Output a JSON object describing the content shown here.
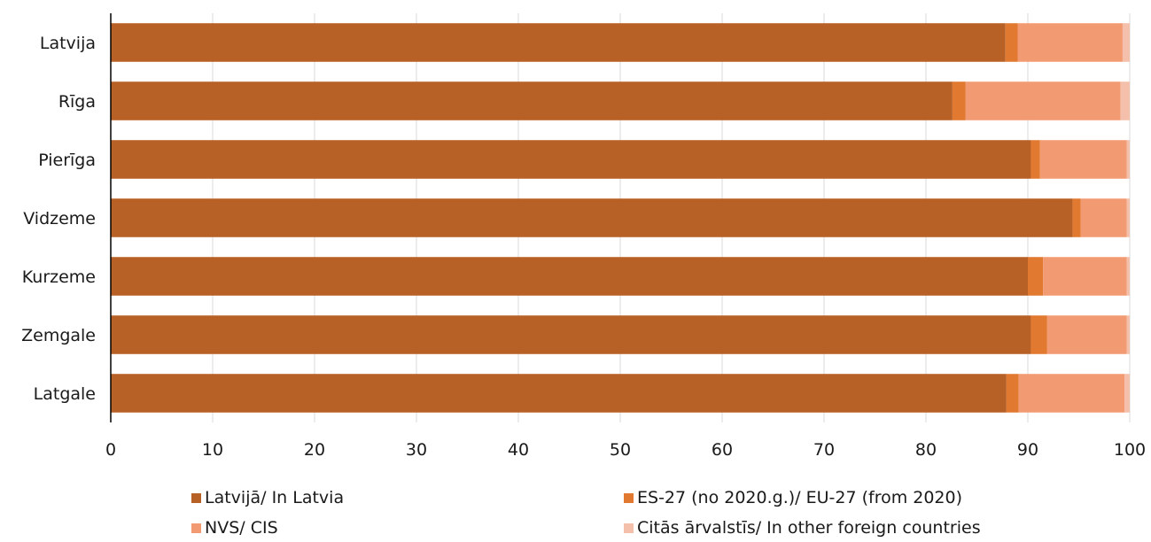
{
  "chart_data": {
    "type": "bar",
    "orientation": "horizontal",
    "stacked": true,
    "categories": [
      "Latvija",
      "Rīga",
      "Pierīga",
      "Vidzeme",
      "Kurzeme",
      "Zemgale",
      "Latgale"
    ],
    "series": [
      {
        "name": "Latvijā/ In Latvia",
        "color": "#b86126",
        "values": [
          87.8,
          82.6,
          90.3,
          94.4,
          90.0,
          90.3,
          87.9
        ]
      },
      {
        "name": "ES-27 (no 2020.g.)/ EU-27 (from 2020)",
        "color": "#e17930",
        "values": [
          1.2,
          1.3,
          0.9,
          0.8,
          1.5,
          1.6,
          1.2
        ]
      },
      {
        "name": "NVS/ CIS",
        "color": "#f29b73",
        "values": [
          10.3,
          15.2,
          8.5,
          4.5,
          8.2,
          7.8,
          10.4
        ]
      },
      {
        "name": "Citās ārvalstīs/ In other foreign countries",
        "color": "#f4c0ac",
        "values": [
          0.7,
          0.9,
          0.3,
          0.3,
          0.3,
          0.3,
          0.5
        ]
      }
    ],
    "xlim": [
      0,
      100
    ],
    "xticks": [
      "0",
      "10",
      "20",
      "30",
      "40",
      "50",
      "60",
      "70",
      "80",
      "90",
      "100"
    ],
    "grid": true,
    "legend_position": "bottom"
  }
}
